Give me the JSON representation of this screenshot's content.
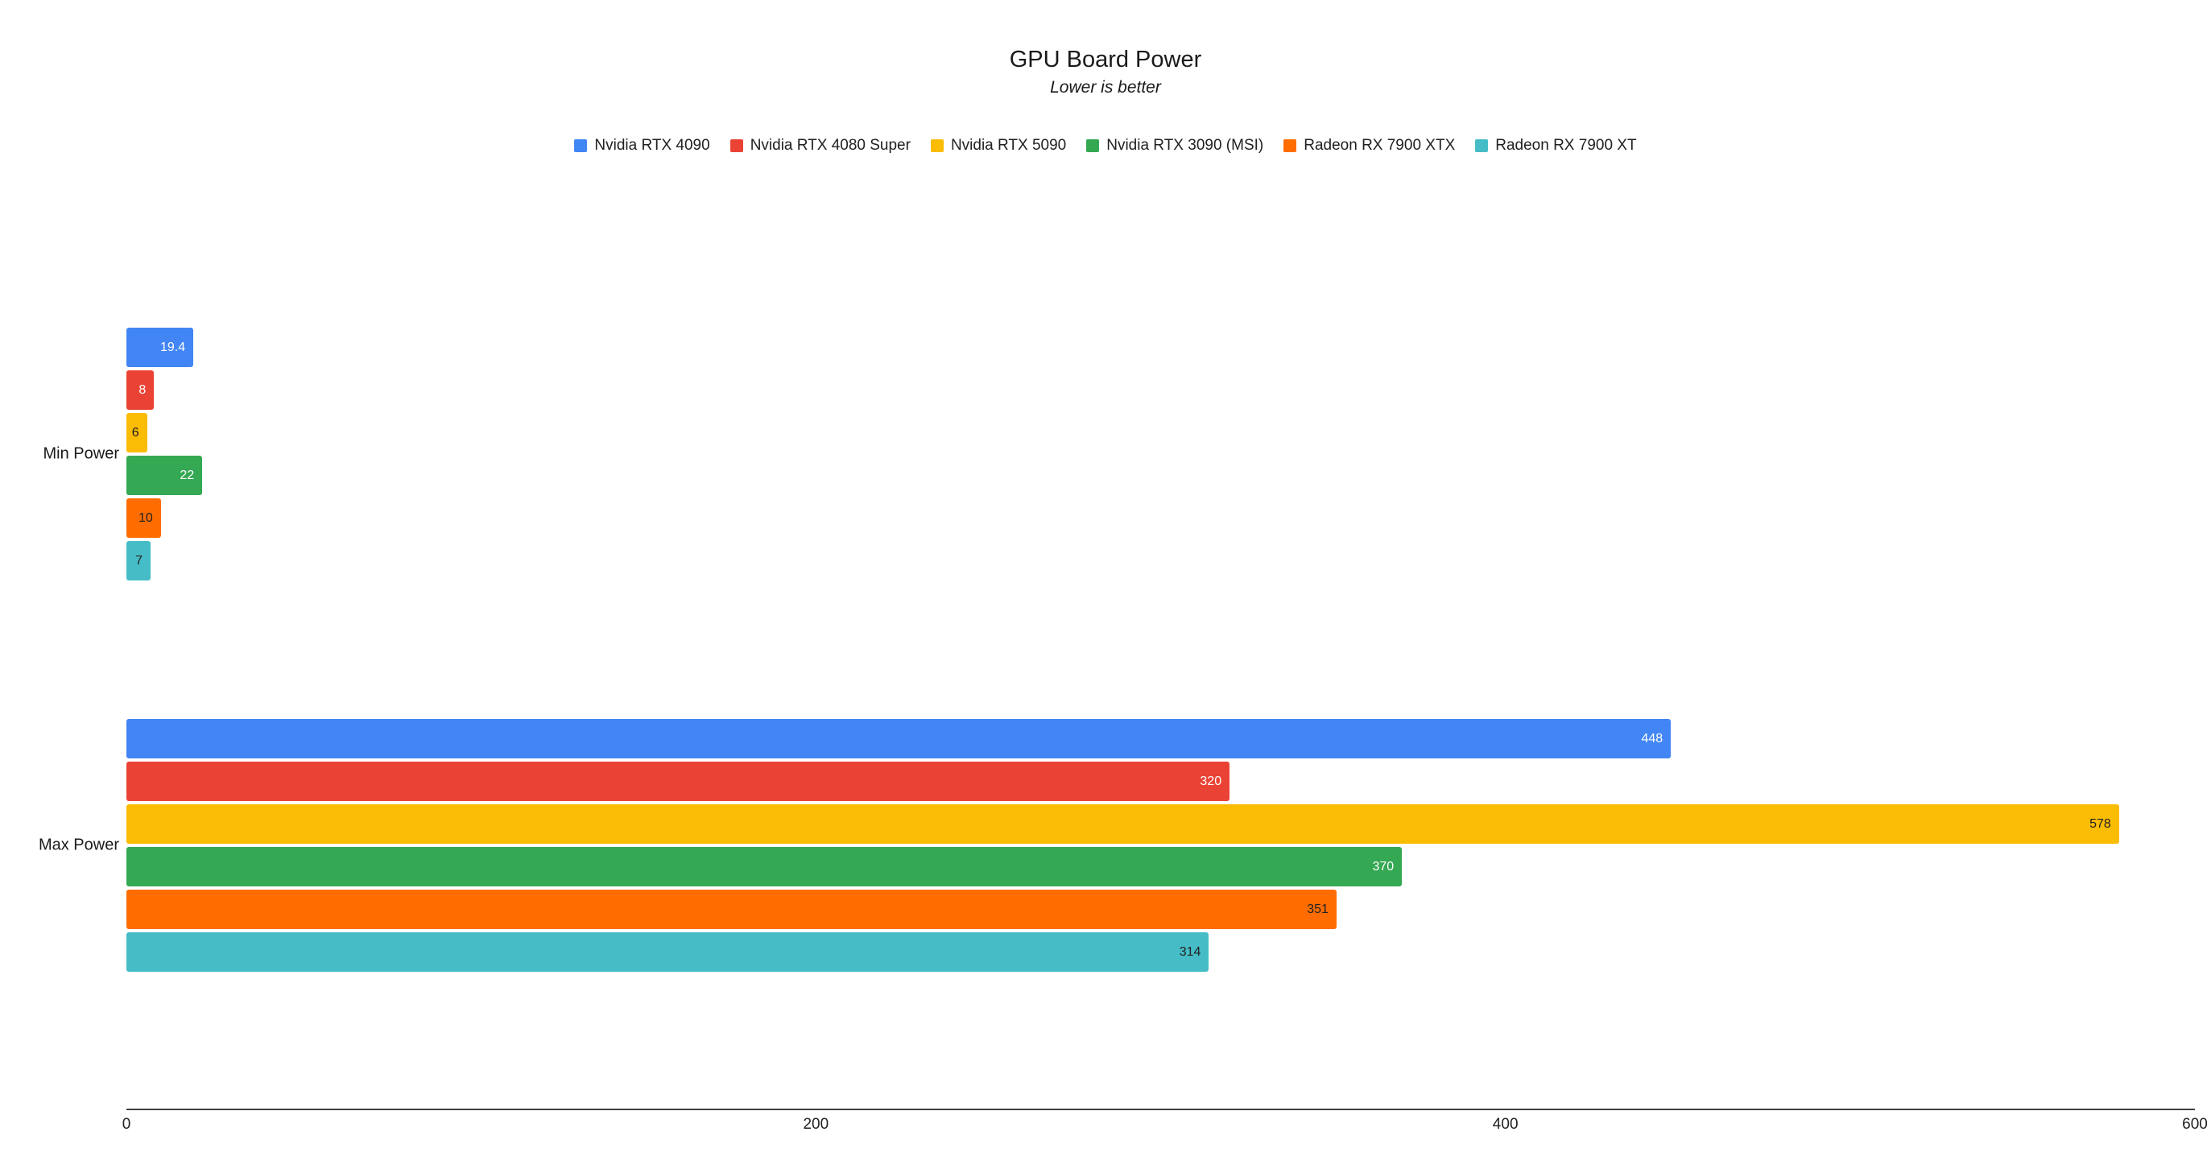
{
  "chart_data": {
    "type": "bar",
    "orientation": "horizontal",
    "title": "GPU Board Power",
    "subtitle": "Lower is better",
    "categories": [
      "Min Power",
      "Max Power"
    ],
    "series": [
      {
        "name": "Nvidia RTX 4090",
        "color": "#4285F4",
        "label_color": "#ffffff",
        "values": [
          19.4,
          448
        ]
      },
      {
        "name": "Nvidia RTX 4080 Super",
        "color": "#EA4335",
        "label_color": "#ffffff",
        "values": [
          8,
          320
        ]
      },
      {
        "name": "Nvidia RTX 5090",
        "color": "#FBBC04",
        "label_color": "#212121",
        "values": [
          6,
          578
        ]
      },
      {
        "name": "Nvidia RTX 3090 (MSI)",
        "color": "#34A853",
        "label_color": "#ffffff",
        "values": [
          22,
          370
        ]
      },
      {
        "name": "Radeon RX 7900 XTX",
        "color": "#FF6D01",
        "label_color": "#212121",
        "values": [
          10,
          351
        ]
      },
      {
        "name": "Radeon RX 7900 XT",
        "color": "#46BDC6",
        "label_color": "#212121",
        "values": [
          7,
          314
        ]
      }
    ],
    "xlim": [
      0,
      600
    ],
    "x_ticks": [
      0,
      200,
      400,
      600
    ],
    "legend_position": "top",
    "grid": false,
    "value_labels_shown": true
  }
}
